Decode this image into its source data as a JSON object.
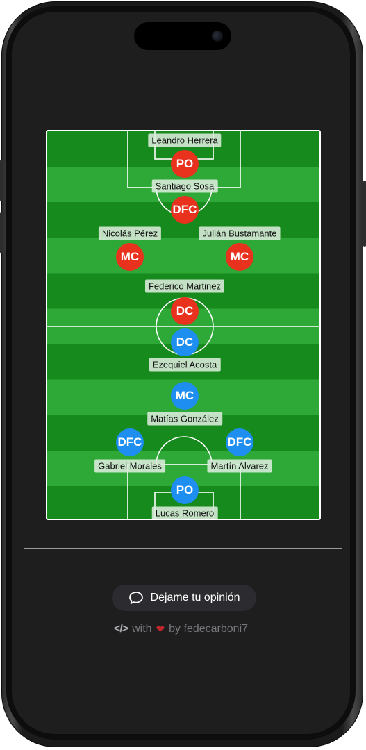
{
  "colors": {
    "home_team": "#e8321e",
    "away_team": "#1e8ef0",
    "pitch_dark": "#168a1c",
    "pitch_light": "#2ea836",
    "screen_bg": "#1e1e1e"
  },
  "players": [
    {
      "name": "Leandro Herrera",
      "position": "PO",
      "team": "red"
    },
    {
      "name": "Santiago Sosa",
      "position": "DFC",
      "team": "red"
    },
    {
      "name": "Nicolás Pérez",
      "position": "MC",
      "team": "red"
    },
    {
      "name": "Julián Bustamante",
      "position": "MC",
      "team": "red"
    },
    {
      "name": "Federico Martinez",
      "position": "DC",
      "team": "red"
    },
    {
      "name": "Ezequiel Acosta",
      "position": "DC",
      "team": "blue"
    },
    {
      "name": "Matías González",
      "position": "MC",
      "team": "blue"
    },
    {
      "name": "Gabriel Morales",
      "position": "DFC",
      "team": "blue"
    },
    {
      "name": "Martín Alvarez",
      "position": "DFC",
      "team": "blue"
    },
    {
      "name": "Lucas Romero",
      "position": "PO",
      "team": "blue"
    }
  ],
  "feedback": {
    "label": "Dejame tu opinión",
    "icon": "chat-bubble-icon"
  },
  "credit": {
    "code_symbol": "</>",
    "with_text": "with",
    "heart_icon": "heart-icon",
    "by_text": "by fedecarboni7"
  }
}
